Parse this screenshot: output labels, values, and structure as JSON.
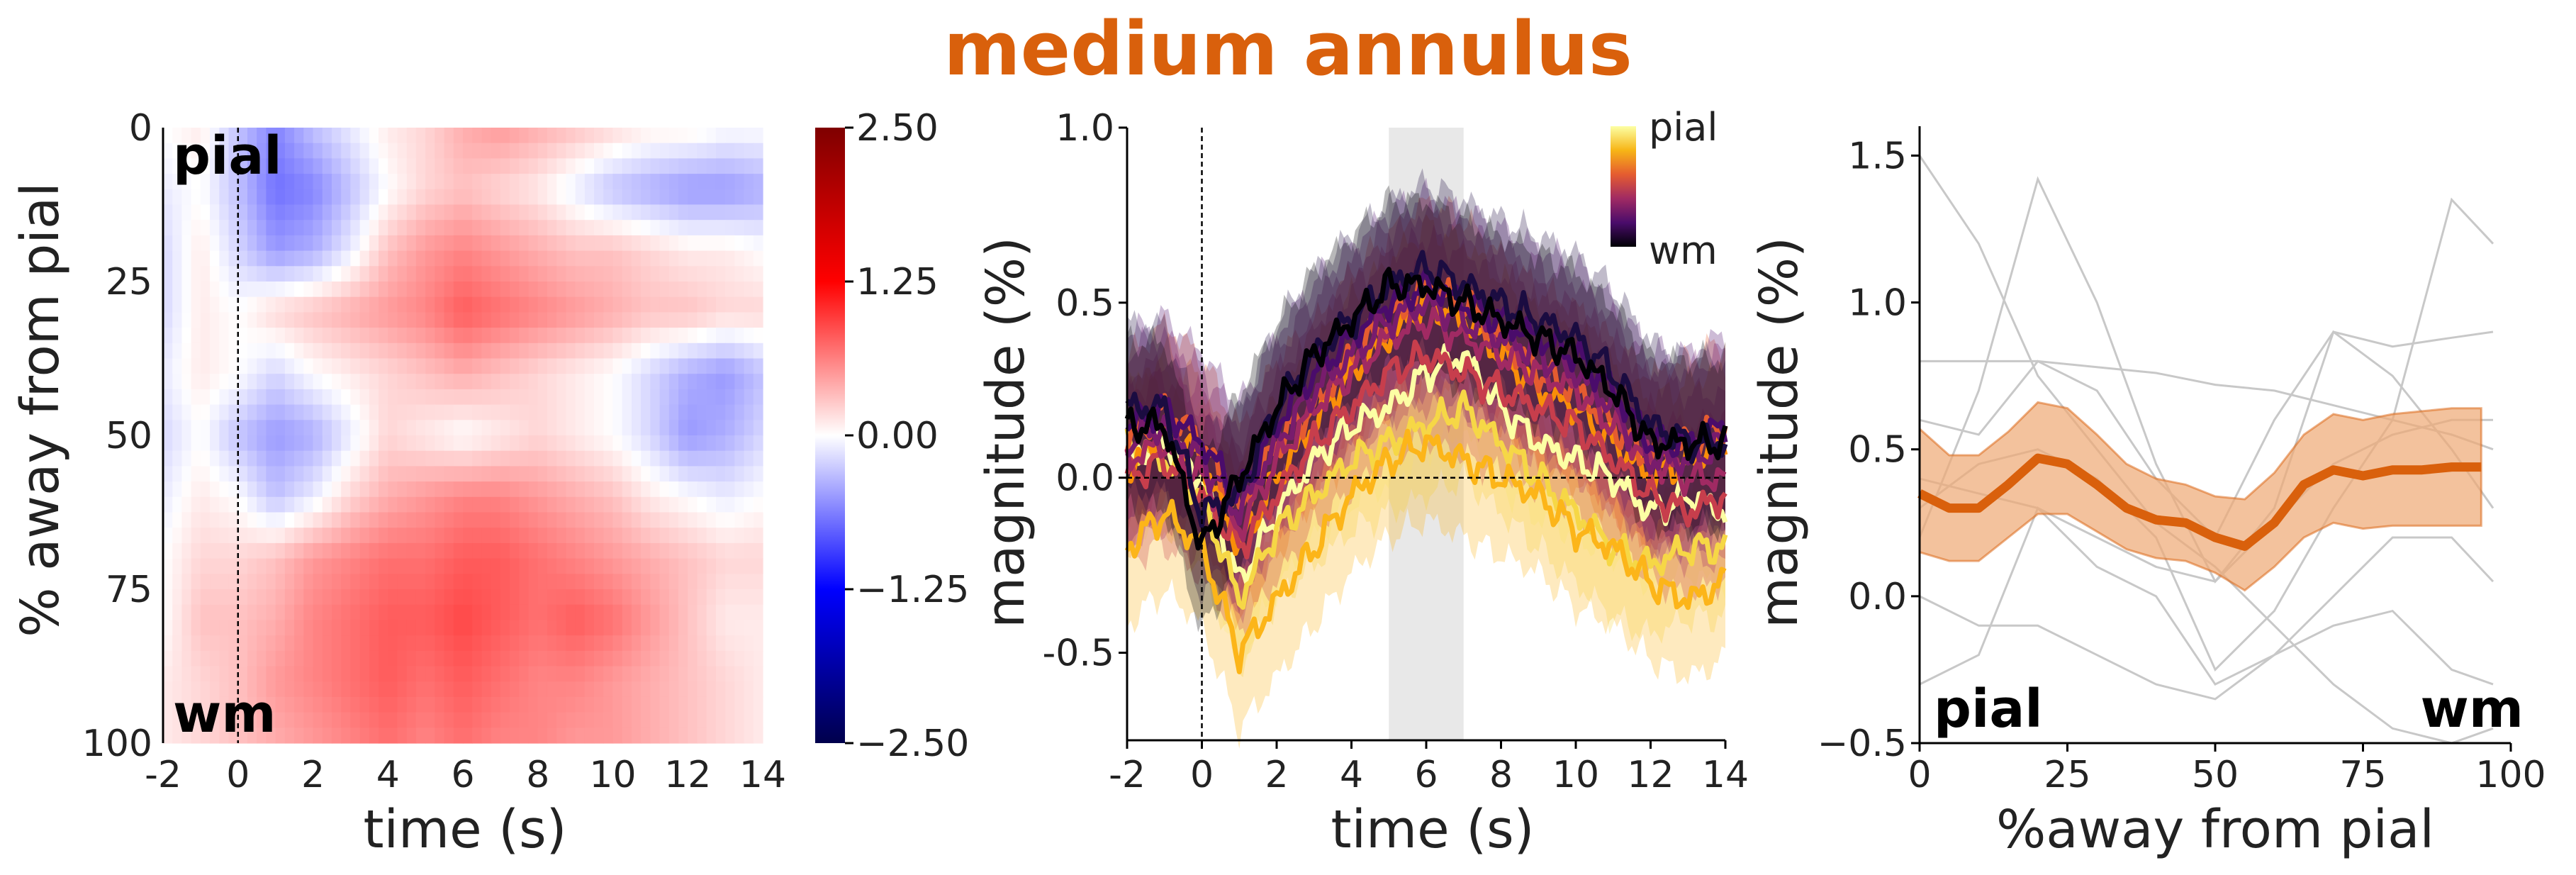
{
  "title": "medium annulus",
  "title_color": "#d9600c",
  "chart_data": [
    {
      "type": "heatmap",
      "xlabel": "time (s)",
      "ylabel": "% away from pial",
      "xlim": [
        -2,
        14
      ],
      "ylim": [
        0,
        100
      ],
      "x_ticks": [
        "-2",
        "0",
        "2",
        "4",
        "6",
        "8",
        "10",
        "12",
        "14"
      ],
      "y_ticks": [
        "0",
        "25",
        "50",
        "75",
        "100"
      ],
      "annotations": {
        "top": "pial",
        "bottom": "wm"
      },
      "vline_at": 0,
      "colorbar": {
        "min": -2.5,
        "max": 2.5,
        "ticks": [
          "2.50",
          "1.25",
          "0.00",
          "−1.25",
          "−2.50"
        ],
        "colormap": "seismic"
      },
      "columns_time": [
        -2,
        -1,
        0,
        1,
        2,
        3,
        4,
        5,
        6,
        7,
        8,
        9,
        10,
        11,
        12,
        13,
        14
      ],
      "rows_depth": [
        0,
        10,
        20,
        30,
        40,
        50,
        60,
        70,
        80,
        90,
        100
      ],
      "z": [
        [
          0.0,
          0.1,
          -0.3,
          -0.6,
          -0.3,
          -0.1,
          0.1,
          0.2,
          0.4,
          0.5,
          0.4,
          0.3,
          0.2,
          0.1,
          0.1,
          0.0,
          0.0
        ],
        [
          -0.1,
          0.0,
          -0.3,
          -0.7,
          -0.6,
          -0.3,
          0.0,
          0.2,
          0.3,
          0.2,
          0.1,
          -0.1,
          -0.3,
          -0.4,
          -0.5,
          -0.5,
          -0.4
        ],
        [
          -0.2,
          0.1,
          -0.2,
          -0.5,
          -0.4,
          -0.1,
          0.3,
          0.5,
          0.6,
          0.5,
          0.4,
          0.3,
          0.3,
          0.2,
          0.1,
          0.1,
          0.0
        ],
        [
          -0.2,
          0.1,
          0.0,
          0.2,
          0.3,
          0.4,
          0.5,
          0.6,
          0.8,
          0.7,
          0.6,
          0.5,
          0.4,
          0.3,
          0.3,
          0.2,
          0.2
        ],
        [
          -0.1,
          0.1,
          0.0,
          -0.2,
          0.0,
          0.1,
          0.2,
          0.3,
          0.4,
          0.3,
          0.2,
          0.1,
          0.0,
          -0.2,
          -0.4,
          -0.5,
          -0.3
        ],
        [
          -0.2,
          0.0,
          -0.3,
          -0.5,
          -0.4,
          -0.1,
          0.2,
          0.1,
          0.0,
          0.1,
          0.2,
          0.1,
          0.0,
          -0.2,
          -0.5,
          -0.4,
          -0.2
        ],
        [
          -0.1,
          0.1,
          0.0,
          -0.3,
          -0.1,
          0.2,
          0.4,
          0.5,
          0.6,
          0.6,
          0.5,
          0.4,
          0.3,
          0.1,
          0.0,
          -0.1,
          0.0
        ],
        [
          0.0,
          0.2,
          0.2,
          0.3,
          0.5,
          0.6,
          0.7,
          0.7,
          0.8,
          0.8,
          0.7,
          0.6,
          0.5,
          0.4,
          0.3,
          0.2,
          0.2
        ],
        [
          0.0,
          0.3,
          0.3,
          0.4,
          0.6,
          0.7,
          0.8,
          0.8,
          0.9,
          0.8,
          0.7,
          0.8,
          0.7,
          0.5,
          0.3,
          0.1,
          0.1
        ],
        [
          0.1,
          0.2,
          0.3,
          0.5,
          0.6,
          0.7,
          0.8,
          0.7,
          0.8,
          0.7,
          0.6,
          0.6,
          0.5,
          0.4,
          0.3,
          0.2,
          0.1
        ],
        [
          0.1,
          0.2,
          0.3,
          0.4,
          0.5,
          0.6,
          0.7,
          0.6,
          0.7,
          0.6,
          0.6,
          0.5,
          0.5,
          0.4,
          0.3,
          0.2,
          0.1
        ]
      ]
    },
    {
      "type": "line",
      "xlabel": "time (s)",
      "ylabel": "magnitude (%)",
      "xlim": [
        -2,
        14
      ],
      "ylim": [
        -0.75,
        1.0
      ],
      "x_ticks": [
        "-2",
        "0",
        "2",
        "4",
        "6",
        "8",
        "10",
        "12",
        "14"
      ],
      "y_ticks": [
        "1.0",
        "0.5",
        "0.0",
        "-0.5"
      ],
      "vline_at": 0,
      "hline_at": 0,
      "shaded_window": [
        5,
        7
      ],
      "colorbar_legend": {
        "top": "pial",
        "bottom": "wm",
        "colormap": "inferno"
      },
      "x": [
        -2,
        -1,
        0,
        1,
        2,
        3,
        4,
        5,
        6,
        7,
        8,
        9,
        10,
        11,
        12,
        13,
        14
      ],
      "series": [
        {
          "depth": 0,
          "color": "#fcffa4",
          "values": [
            0.05,
            0.1,
            0.0,
            -0.3,
            -0.1,
            0.05,
            0.15,
            0.2,
            0.3,
            0.35,
            0.2,
            0.1,
            0.05,
            0.0,
            -0.1,
            -0.05,
            -0.1
          ],
          "ci": 0.22
        },
        {
          "depth": 10,
          "color": "#f6d746",
          "values": [
            0.1,
            0.05,
            -0.05,
            -0.35,
            -0.15,
            -0.05,
            0.05,
            0.1,
            0.15,
            0.2,
            0.1,
            0.0,
            -0.1,
            -0.2,
            -0.25,
            -0.2,
            -0.2
          ],
          "ci": 0.2
        },
        {
          "depth": 20,
          "color": "#fcb519",
          "values": [
            -0.2,
            -0.1,
            -0.2,
            -0.5,
            -0.35,
            -0.2,
            -0.05,
            0.05,
            0.1,
            0.05,
            0.0,
            -0.05,
            -0.15,
            -0.2,
            -0.3,
            -0.35,
            -0.3
          ],
          "ci": 0.22
        },
        {
          "depth": 30,
          "color": "#f98e09",
          "values": [
            0.0,
            0.15,
            0.05,
            -0.2,
            0.0,
            0.15,
            0.3,
            0.4,
            0.5,
            0.45,
            0.35,
            0.25,
            0.2,
            0.1,
            0.0,
            0.05,
            0.1
          ],
          "ci": 0.22
        },
        {
          "depth": 40,
          "color": "#e55c30",
          "values": [
            0.1,
            0.2,
            0.1,
            -0.1,
            0.1,
            0.2,
            0.35,
            0.45,
            0.55,
            0.5,
            0.4,
            0.3,
            0.25,
            0.15,
            0.05,
            0.1,
            0.15
          ],
          "ci": 0.24
        },
        {
          "depth": 50,
          "color": "#c73e4c",
          "values": [
            0.0,
            0.05,
            -0.05,
            -0.2,
            -0.05,
            0.1,
            0.2,
            0.3,
            0.35,
            0.3,
            0.25,
            0.2,
            0.15,
            0.05,
            -0.05,
            -0.1,
            -0.05
          ],
          "ci": 0.24
        },
        {
          "depth": 60,
          "color": "#a02a63",
          "values": [
            0.05,
            0.1,
            0.0,
            -0.15,
            0.05,
            0.2,
            0.3,
            0.4,
            0.45,
            0.4,
            0.35,
            0.3,
            0.25,
            0.15,
            0.05,
            0.0,
            0.0
          ],
          "ci": 0.24
        },
        {
          "depth": 70,
          "color": "#781c6d",
          "values": [
            0.1,
            0.15,
            0.05,
            -0.1,
            0.1,
            0.25,
            0.35,
            0.45,
            0.5,
            0.45,
            0.4,
            0.35,
            0.3,
            0.2,
            0.05,
            0.05,
            0.1
          ],
          "ci": 0.26
        },
        {
          "depth": 80,
          "color": "#4a0c6b",
          "values": [
            0.15,
            0.2,
            0.1,
            -0.05,
            0.15,
            0.3,
            0.4,
            0.5,
            0.55,
            0.5,
            0.45,
            0.4,
            0.35,
            0.25,
            0.1,
            0.1,
            0.15
          ],
          "ci": 0.26
        },
        {
          "depth": 90,
          "color": "#1b0c41",
          "values": [
            0.2,
            0.2,
            -0.1,
            -0.05,
            0.2,
            0.35,
            0.45,
            0.55,
            0.6,
            0.55,
            0.5,
            0.45,
            0.4,
            0.3,
            0.15,
            0.1,
            0.1
          ],
          "ci": 0.24
        },
        {
          "depth": 100,
          "color": "#000004",
          "values": [
            0.15,
            0.15,
            -0.2,
            0.0,
            0.2,
            0.35,
            0.45,
            0.55,
            0.55,
            0.5,
            0.45,
            0.4,
            0.35,
            0.25,
            0.1,
            0.1,
            0.1
          ],
          "ci": 0.24
        }
      ]
    },
    {
      "type": "line",
      "xlabel": "%away from pial",
      "ylabel": "magnitude (%)",
      "xlim": [
        0,
        100
      ],
      "ylim": [
        -0.5,
        1.6
      ],
      "x_ticks": [
        "0",
        "25",
        "50",
        "75",
        "100"
      ],
      "y_ticks": [
        "1.5",
        "1.0",
        "0.5",
        "0.0",
        "−0.5"
      ],
      "annotations": {
        "left": "pial",
        "right": "wm"
      },
      "mean": {
        "color": "#d9600c",
        "band_color": "#eea874",
        "x": [
          0,
          5,
          10,
          15,
          20,
          25,
          30,
          35,
          40,
          45,
          50,
          55,
          60,
          65,
          70,
          75,
          80,
          85,
          90,
          95
        ],
        "values": [
          0.35,
          0.3,
          0.3,
          0.38,
          0.47,
          0.45,
          0.38,
          0.3,
          0.26,
          0.25,
          0.2,
          0.17,
          0.25,
          0.38,
          0.43,
          0.41,
          0.43,
          0.43,
          0.44,
          0.44
        ],
        "lower": [
          0.15,
          0.12,
          0.12,
          0.2,
          0.28,
          0.28,
          0.22,
          0.16,
          0.13,
          0.12,
          0.08,
          0.02,
          0.1,
          0.2,
          0.25,
          0.23,
          0.24,
          0.24,
          0.24,
          0.24
        ],
        "upper": [
          0.57,
          0.48,
          0.48,
          0.56,
          0.66,
          0.64,
          0.55,
          0.45,
          0.4,
          0.38,
          0.34,
          0.33,
          0.42,
          0.55,
          0.62,
          0.6,
          0.62,
          0.63,
          0.64,
          0.64
        ]
      },
      "subjects": [
        {
          "x": [
            0,
            10,
            20,
            30,
            40,
            50,
            60,
            70,
            80,
            90,
            97
          ],
          "values": [
            1.5,
            1.2,
            0.75,
            0.5,
            0.25,
            0.1,
            -0.1,
            -0.3,
            -0.45,
            -0.5,
            -0.45
          ]
        },
        {
          "x": [
            0,
            10,
            20,
            30,
            40,
            50,
            60,
            70,
            80,
            90,
            97
          ],
          "values": [
            0.8,
            0.8,
            0.8,
            0.78,
            0.76,
            0.72,
            0.7,
            0.65,
            0.6,
            0.55,
            0.5
          ]
        },
        {
          "x": [
            0,
            10,
            20,
            30,
            40,
            50,
            60,
            70,
            80,
            90,
            97
          ],
          "values": [
            0.2,
            0.7,
            1.42,
            1.0,
            0.45,
            0.05,
            0.3,
            0.9,
            0.85,
            0.88,
            0.9
          ]
        },
        {
          "x": [
            0,
            10,
            20,
            30,
            40,
            50,
            60,
            70,
            80,
            90,
            97
          ],
          "values": [
            -0.3,
            -0.2,
            0.3,
            0.1,
            0.0,
            -0.3,
            -0.2,
            0.0,
            0.2,
            0.2,
            0.05
          ]
        },
        {
          "x": [
            0,
            10,
            20,
            30,
            40,
            50,
            60,
            70,
            80,
            90,
            97
          ],
          "values": [
            0.4,
            0.35,
            0.3,
            0.2,
            0.1,
            0.05,
            0.25,
            0.45,
            0.55,
            0.6,
            0.6
          ]
        },
        {
          "x": [
            0,
            10,
            20,
            30,
            40,
            50,
            60,
            70,
            80,
            90,
            97
          ],
          "values": [
            0.3,
            0.45,
            0.5,
            0.4,
            0.2,
            -0.25,
            -0.05,
            0.3,
            0.6,
            1.35,
            1.2
          ]
        },
        {
          "x": [
            0,
            10,
            20,
            30,
            40,
            50,
            60,
            70,
            80,
            90,
            97
          ],
          "values": [
            0.0,
            -0.1,
            -0.1,
            -0.2,
            -0.3,
            -0.35,
            -0.2,
            -0.1,
            -0.05,
            -0.25,
            -0.3
          ]
        },
        {
          "x": [
            0,
            10,
            20,
            30,
            40,
            50,
            60,
            70,
            80,
            90,
            97
          ],
          "values": [
            0.6,
            0.55,
            0.8,
            0.7,
            0.4,
            0.2,
            0.6,
            0.9,
            0.75,
            0.5,
            0.3
          ]
        }
      ]
    }
  ]
}
